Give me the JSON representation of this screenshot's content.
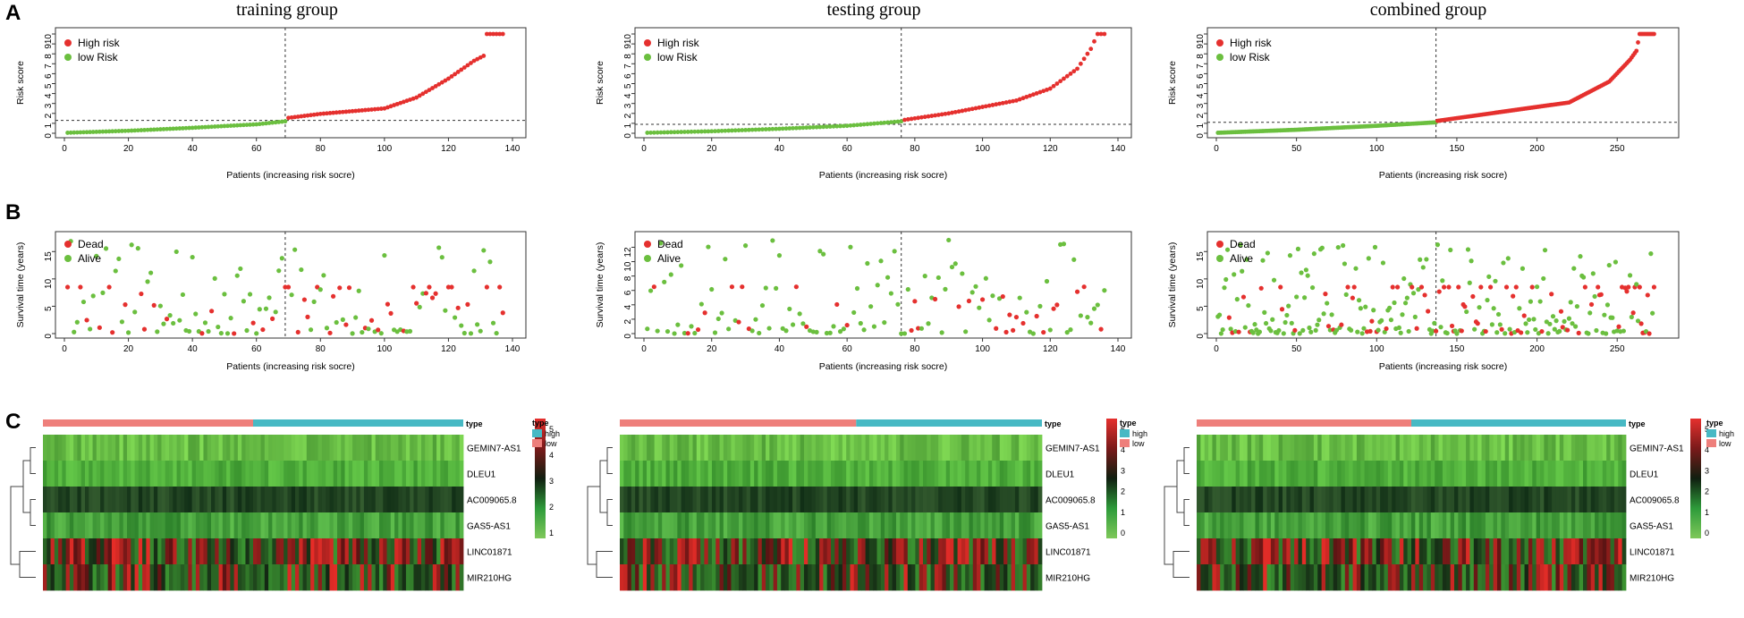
{
  "panel_letters": [
    "A",
    "B",
    "C"
  ],
  "colors": {
    "high": "#e5302e",
    "low": "#6bbf3f",
    "dead": "#e5302e",
    "alive": "#6bbf3f",
    "bar_high": "#47b9c4",
    "bar_low": "#ee7f7b"
  },
  "chart_data": [
    {
      "group": "training group",
      "risk": {
        "type": "scatter",
        "n": 137,
        "cutoff_index": 69,
        "cutoff_value": 1.3,
        "ylabel": "Risk score",
        "xlabel": "Patients (increasing risk socre)",
        "xticks": [
          0,
          20,
          40,
          60,
          80,
          100,
          120,
          140
        ],
        "yticks": [
          0,
          1,
          2,
          3,
          4,
          5,
          6,
          7,
          8,
          9,
          10
        ],
        "xlim": [
          0,
          140
        ],
        "ylim": [
          0,
          10
        ],
        "legend": [
          "High risk",
          "low Risk"
        ],
        "anchors": [
          [
            1,
            0.05
          ],
          [
            20,
            0.25
          ],
          [
            40,
            0.55
          ],
          [
            60,
            0.9
          ],
          [
            69,
            1.2
          ],
          [
            70,
            1.55
          ],
          [
            80,
            1.95
          ],
          [
            100,
            2.5
          ],
          [
            110,
            3.6
          ],
          [
            120,
            5.5
          ],
          [
            128,
            7.3
          ],
          [
            131,
            7.8
          ],
          [
            132,
            10
          ],
          [
            137,
            10
          ]
        ]
      },
      "survival": {
        "type": "scatter",
        "n": 137,
        "ylabel": "Survival time (years)",
        "xlabel": "Patients (increasing risk socre)",
        "xticks": [
          0,
          20,
          40,
          60,
          80,
          100,
          120,
          140
        ],
        "yticks": [
          0,
          5,
          10,
          15
        ],
        "xlim": [
          0,
          140
        ],
        "ylim": [
          0,
          17.5
        ],
        "legend": [
          "Dead",
          "Alive"
        ],
        "dead_rate": 0.27,
        "max_time": 17
      },
      "heatmap": {
        "legend_title": "type",
        "legend_items": [
          "high",
          "low"
        ],
        "type_label": "type",
        "genes": [
          "GEMIN7-AS1",
          "DLEU1",
          "AC009065.8",
          "GAS5-AS1",
          "LINC01871",
          "MIR210HG"
        ],
        "scale_ticks": [
          1,
          2,
          3,
          4,
          5
        ],
        "low_fraction": 0.5
      }
    },
    {
      "group": "testing group",
      "risk": {
        "type": "scatter",
        "n": 136,
        "cutoff_index": 76,
        "cutoff_value": 0.9,
        "ylabel": "Risk score",
        "xlabel": "Patients (increasing risk socre)",
        "xticks": [
          0,
          20,
          40,
          60,
          80,
          100,
          120,
          140
        ],
        "yticks": [
          0,
          1,
          2,
          3,
          4,
          5,
          6,
          7,
          8,
          9,
          10
        ],
        "xlim": [
          0,
          140
        ],
        "ylim": [
          0,
          10
        ],
        "legend": [
          "High risk",
          "low Risk"
        ],
        "anchors": [
          [
            1,
            0.05
          ],
          [
            20,
            0.2
          ],
          [
            40,
            0.45
          ],
          [
            60,
            0.75
          ],
          [
            76,
            1.2
          ],
          [
            77,
            1.35
          ],
          [
            90,
            2.0
          ],
          [
            110,
            3.3
          ],
          [
            120,
            4.5
          ],
          [
            128,
            6.5
          ],
          [
            132,
            8.5
          ],
          [
            134,
            10
          ],
          [
            136,
            10
          ]
        ]
      },
      "survival": {
        "type": "scatter",
        "n": 136,
        "ylabel": "Survival time (years)",
        "xlabel": "Patients (increasing risk socre)",
        "xticks": [
          0,
          20,
          40,
          60,
          80,
          100,
          120,
          140
        ],
        "yticks": [
          0,
          2,
          4,
          6,
          8,
          10,
          12
        ],
        "xlim": [
          0,
          140
        ],
        "ylim": [
          0,
          13.3
        ],
        "legend": [
          "Dead",
          "Alive"
        ],
        "dead_rate": 0.25,
        "max_time": 13
      },
      "heatmap": {
        "legend_title": "type",
        "legend_items": [
          "high",
          "low"
        ],
        "type_label": "type",
        "genes": [
          "GEMIN7-AS1",
          "DLEU1",
          "AC009065.8",
          "GAS5-AS1",
          "LINC01871",
          "MIR210HG"
        ],
        "scale_ticks": [
          0,
          1,
          2,
          3,
          4,
          5
        ],
        "low_fraction": 0.56
      }
    },
    {
      "group": "combined group",
      "risk": {
        "type": "scatter",
        "n": 273,
        "cutoff_index": 137,
        "cutoff_value": 1.1,
        "ylabel": "Risk score",
        "xlabel": "Patients (increasing risk socre)",
        "xticks": [
          0,
          50,
          100,
          150,
          200,
          250
        ],
        "yticks": [
          0,
          1,
          2,
          3,
          4,
          5,
          6,
          7,
          8,
          9,
          10
        ],
        "xlim": [
          0,
          280
        ],
        "ylim": [
          0,
          10
        ],
        "legend": [
          "High risk",
          "low Risk"
        ],
        "anchors": [
          [
            1,
            0.05
          ],
          [
            50,
            0.35
          ],
          [
            100,
            0.75
          ],
          [
            137,
            1.1
          ],
          [
            138,
            1.25
          ],
          [
            180,
            2.2
          ],
          [
            220,
            3.1
          ],
          [
            245,
            5.2
          ],
          [
            258,
            7.4
          ],
          [
            262,
            8.3
          ],
          [
            264,
            10
          ],
          [
            273,
            10
          ]
        ]
      },
      "survival": {
        "type": "scatter",
        "n": 273,
        "ylabel": "Survival time (years)",
        "xlabel": "Patients (increasing risk socre)",
        "xticks": [
          0,
          50,
          100,
          150,
          200,
          250
        ],
        "yticks": [
          0,
          5,
          10,
          15
        ],
        "xlim": [
          0,
          280
        ],
        "ylim": [
          0,
          17.5
        ],
        "legend": [
          "Dead",
          "Alive"
        ],
        "dead_rate": 0.26,
        "max_time": 17
      },
      "heatmap": {
        "legend_title": "type",
        "legend_items": [
          "high",
          "low"
        ],
        "type_label": "type",
        "genes": [
          "GEMIN7-AS1",
          "DLEU1",
          "AC009065.8",
          "GAS5-AS1",
          "LINC01871",
          "MIR210HG"
        ],
        "scale_ticks": [
          0,
          1,
          2,
          3,
          4,
          5
        ],
        "low_fraction": 0.5
      }
    }
  ]
}
